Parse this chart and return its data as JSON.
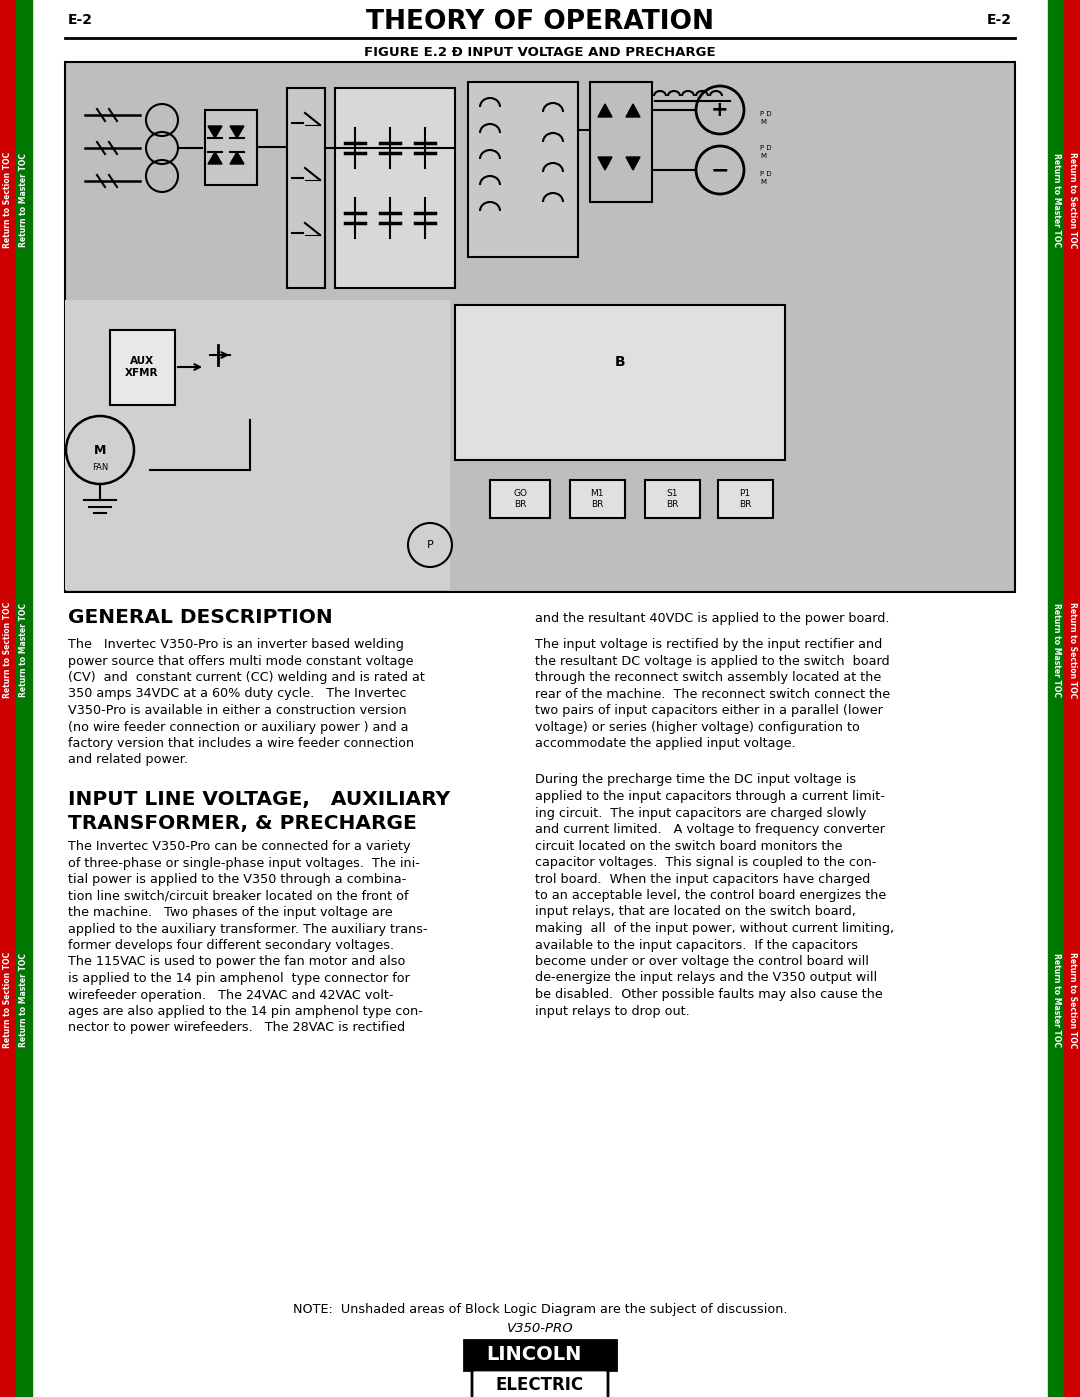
{
  "page_label": "E-2",
  "title": "THEORY OF OPERATION",
  "figure_caption": "FIGURE E.2 Ð INPUT VOLTAGE AND PRECHARGE",
  "bg_color": "#ffffff",
  "diagram_bg": "#bebebe",
  "diagram_inner_bg": "#d0d0d0",
  "sidebar_red": "#cc0000",
  "sidebar_green": "#007700",
  "section1_heading": "GENERAL DESCRIPTION",
  "section1_body": "The   Invertec V350-Pro is an inverter based welding power source that offers multi mode constant voltage (CV)  and  constant current (CC) welding and is rated at 350 amps 34VDC at a 60% duty cycle.   The Invertec V350-Pro is available in either a construction version (no wire feeder connection or auxiliary power ) and a factory version that includes a wire feeder connection and related power.",
  "section2_heading_l1": "INPUT LINE VOLTAGE,   AUXILIARY",
  "section2_heading_l2": "TRANSFORMER, & PRECHARGE",
  "section2_body_left": "The Invertec V350-Pro can be connected for a variety of three-phase or single-phase input voltages.  The ini-tial power is applied to the V350 through a combina-tion line switch/circuit breaker located on the front of the machine.   Two phases of the input voltage are applied to the auxiliary transformer. The auxiliary trans-former develops four different secondary voltages. The 115VAC is used to power the fan motor and also is applied to the 14 pin amphenol  type connector for wirefeeder operation.   The 24VAC and 42VAC volt-ages are also applied to the 14 pin amphenol type con-nector to power wirefeeders.   The 28VAC is rectified",
  "right_col_p0": "and the resultant 40VDC is applied to the power board.",
  "right_col_p1": "The input voltage is rectified by the input rectifier and the resultant DC voltage is applied to the switch  board through the reconnect switch assembly located at the rear of the machine.  The reconnect switch connect the two pairs of input capacitors either in a parallel (lower voltage) or series (higher voltage) configuration to accommodate the applied input voltage.",
  "right_col_p2": "During the precharge time the DC input voltage is applied to the input capacitors through a current limit-ing circuit.  The input capacitors are charged slowly and current limited.   A voltage to frequency converter circuit located on the switch board monitors the capacitor voltages.  This signal is coupled to the con-trol board.  When the input capacitors have charged to an acceptable level, the control board energizes the input relays, that are located on the switch board, making  all  of the input power, without current limiting, available to the input capacitors.  If the capacitors become under or over voltage the control board will de-energize the input relays and the V350 output will be disabled.  Other possible faults may also cause the input relays to drop out.",
  "note_text": "NOTE:  Unshaded areas of Block Logic Diagram are the subject of discussion.",
  "brand_name": "V350-PRO",
  "lincoln_text": "LINCOLN",
  "electric_text": "ELECTRIC",
  "sidebar_labels": [
    "Return to Section TOC",
    "Return to Master TOC"
  ]
}
